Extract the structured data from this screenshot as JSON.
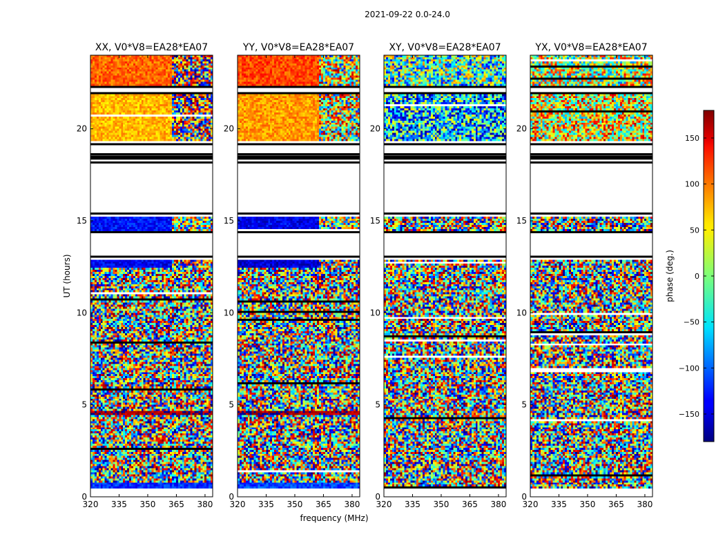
{
  "figure": {
    "title": "2021-09-22 0.0-24.0"
  },
  "colorbar": {
    "label": "phase (deg.)",
    "range": [
      -180,
      180
    ],
    "ticks": [
      150,
      100,
      50,
      0,
      -50,
      -100,
      -150
    ],
    "tick_labels": [
      "150",
      "100",
      "50",
      "0",
      "−50",
      "−100",
      "−150"
    ],
    "colormap": "jet"
  },
  "chart_data": [
    {
      "type": "heatmap",
      "title": "XX, V0*V8=EA28*EA07",
      "xlabel": "",
      "ylabel": "UT (hours)",
      "xlim": [
        320,
        384
      ],
      "ylim": [
        0,
        24
      ],
      "xticks": [
        320,
        335,
        350,
        365,
        380
      ],
      "yticks": [
        0,
        5,
        10,
        15,
        20
      ],
      "value_unit": "phase (deg.)",
      "flagged_ut_ranges": [
        [
          13.0,
          14.4
        ],
        [
          15.3,
          18.2
        ],
        [
          18.6,
          19.2
        ],
        [
          21.9,
          22.3
        ]
      ],
      "bands": [
        {
          "ut_start": 0.5,
          "ut_end": 0.8,
          "pattern": "coherent",
          "phase_left": -120,
          "phase_right": -110,
          "break_mhz": 384
        },
        {
          "ut_start": 0.8,
          "ut_end": 4.5,
          "pattern": "noise",
          "phase_left": 0,
          "phase_right": 0,
          "break_mhz": 384
        },
        {
          "ut_start": 4.5,
          "ut_end": 4.7,
          "pattern": "coherent",
          "phase_left": 170,
          "phase_right": 160,
          "break_mhz": 384
        },
        {
          "ut_start": 4.7,
          "ut_end": 12.5,
          "pattern": "noise",
          "phase_left": 0,
          "phase_right": 0,
          "break_mhz": 384
        },
        {
          "ut_start": 12.5,
          "ut_end": 12.9,
          "pattern": "coherent",
          "phase_left": -140,
          "phase_right": 160,
          "break_mhz": 363
        },
        {
          "ut_start": 14.4,
          "ut_end": 15.2,
          "pattern": "coherent",
          "phase_left": -130,
          "phase_right": 10,
          "break_mhz": 363
        },
        {
          "ut_start": 19.3,
          "ut_end": 21.9,
          "pattern": "coherent",
          "phase_left": 70,
          "phase_right": 150,
          "break_mhz": 363
        },
        {
          "ut_start": 22.3,
          "ut_end": 24.0,
          "pattern": "coherent",
          "phase_left": 100,
          "phase_right": 140,
          "break_mhz": 363
        }
      ]
    },
    {
      "type": "heatmap",
      "title": "YY, V0*V8=EA28*EA07",
      "xlabel": "frequency (MHz)",
      "ylabel": "",
      "xlim": [
        320,
        384
      ],
      "ylim": [
        0,
        24
      ],
      "xticks": [
        320,
        335,
        350,
        365,
        380
      ],
      "yticks": [
        0,
        5,
        10,
        15,
        20
      ],
      "value_unit": "phase (deg.)",
      "flagged_ut_ranges": [
        [
          13.0,
          14.4
        ],
        [
          15.3,
          18.2
        ],
        [
          18.6,
          19.2
        ],
        [
          21.9,
          22.3
        ]
      ],
      "bands": [
        {
          "ut_start": 0.5,
          "ut_end": 0.8,
          "pattern": "coherent",
          "phase_left": -110,
          "phase_right": -100,
          "break_mhz": 384
        },
        {
          "ut_start": 0.8,
          "ut_end": 4.5,
          "pattern": "noise",
          "phase_left": 0,
          "phase_right": 0,
          "break_mhz": 384
        },
        {
          "ut_start": 4.5,
          "ut_end": 4.7,
          "pattern": "coherent",
          "phase_left": 170,
          "phase_right": 165,
          "break_mhz": 384
        },
        {
          "ut_start": 4.7,
          "ut_end": 12.5,
          "pattern": "noise",
          "phase_left": 0,
          "phase_right": 0,
          "break_mhz": 384
        },
        {
          "ut_start": 12.5,
          "ut_end": 12.9,
          "pattern": "coherent",
          "phase_left": -150,
          "phase_right": 160,
          "break_mhz": 363
        },
        {
          "ut_start": 14.4,
          "ut_end": 15.2,
          "pattern": "coherent",
          "phase_left": -140,
          "phase_right": 0,
          "break_mhz": 363
        },
        {
          "ut_start": 19.3,
          "ut_end": 21.9,
          "pattern": "coherent",
          "phase_left": 80,
          "phase_right": 30,
          "break_mhz": 363
        },
        {
          "ut_start": 22.3,
          "ut_end": 24.0,
          "pattern": "coherent",
          "phase_left": 110,
          "phase_right": 20,
          "break_mhz": 363
        }
      ]
    },
    {
      "type": "heatmap",
      "title": "XY, V0*V8=EA28*EA07",
      "xlabel": "",
      "ylabel": "",
      "xlim": [
        320,
        384
      ],
      "ylim": [
        0,
        24
      ],
      "xticks": [
        320,
        335,
        350,
        365,
        380
      ],
      "yticks": [
        0,
        5,
        10,
        15,
        20
      ],
      "value_unit": "phase (deg.)",
      "flagged_ut_ranges": [
        [
          13.0,
          14.4
        ],
        [
          15.3,
          18.2
        ],
        [
          18.6,
          19.2
        ],
        [
          21.9,
          22.3
        ]
      ],
      "bands": [
        {
          "ut_start": 0.5,
          "ut_end": 12.9,
          "pattern": "noise",
          "phase_left": 0,
          "phase_right": 0,
          "break_mhz": 384
        },
        {
          "ut_start": 14.4,
          "ut_end": 15.2,
          "pattern": "noise",
          "phase_left": 0,
          "phase_right": 0,
          "break_mhz": 384
        },
        {
          "ut_start": 19.3,
          "ut_end": 21.9,
          "pattern": "biased",
          "phase_left": -60,
          "phase_right": -40,
          "break_mhz": 384
        },
        {
          "ut_start": 22.3,
          "ut_end": 24.0,
          "pattern": "biased",
          "phase_left": -20,
          "phase_right": 0,
          "break_mhz": 384
        }
      ]
    },
    {
      "type": "heatmap",
      "title": "YX, V0*V8=EA28*EA07",
      "xlabel": "",
      "ylabel": "",
      "xlim": [
        320,
        384
      ],
      "ylim": [
        0,
        24
      ],
      "xticks": [
        320,
        335,
        350,
        365,
        380
      ],
      "yticks": [
        0,
        5,
        10,
        15,
        20
      ],
      "value_unit": "phase (deg.)",
      "flagged_ut_ranges": [
        [
          13.0,
          14.4
        ],
        [
          15.3,
          18.2
        ],
        [
          18.6,
          19.2
        ],
        [
          21.9,
          22.3
        ]
      ],
      "bands": [
        {
          "ut_start": 0.5,
          "ut_end": 12.9,
          "pattern": "noise",
          "phase_left": 0,
          "phase_right": 0,
          "break_mhz": 384
        },
        {
          "ut_start": 14.4,
          "ut_end": 15.2,
          "pattern": "noise",
          "phase_left": 0,
          "phase_right": 0,
          "break_mhz": 384
        },
        {
          "ut_start": 19.3,
          "ut_end": 21.9,
          "pattern": "biased",
          "phase_left": 40,
          "phase_right": 60,
          "break_mhz": 384
        },
        {
          "ut_start": 22.3,
          "ut_end": 24.0,
          "pattern": "biased",
          "phase_left": 20,
          "phase_right": 40,
          "break_mhz": 384
        }
      ]
    }
  ]
}
